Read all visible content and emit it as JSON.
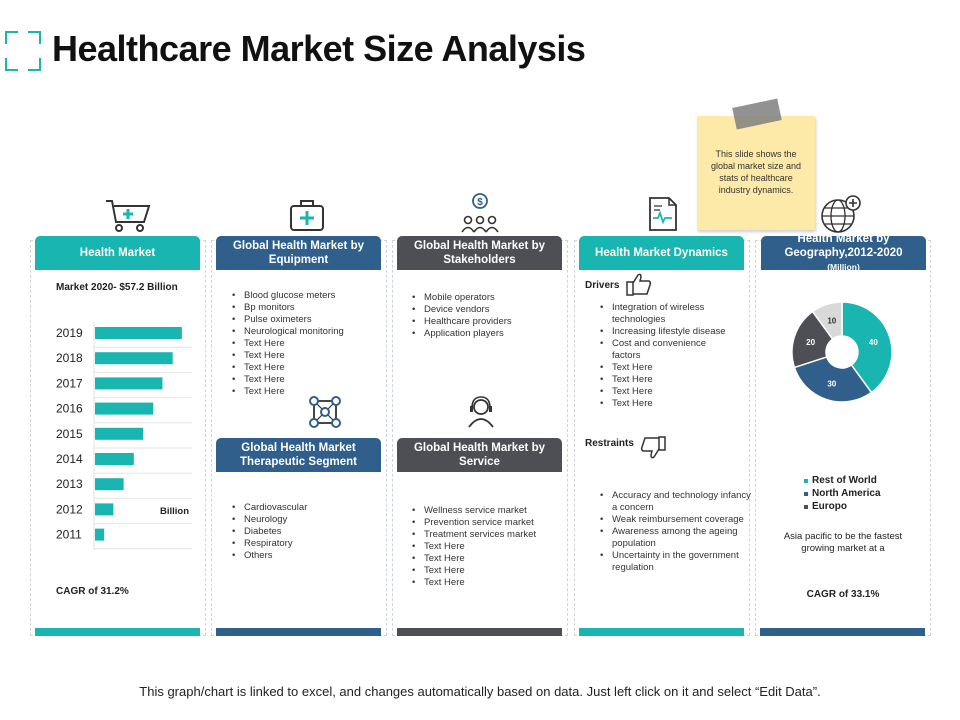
{
  "title": "Healthcare Market Size Analysis",
  "note": "This slide shows the global market size and stats of healthcare industry dynamics.",
  "footer": "This graph/chart is linked to excel, and changes automatically based on data. Just left click on it and select “Edit Data”.",
  "colors": {
    "teal": "#19b5b0",
    "blue": "#2f5f8a",
    "gray": "#4d4f54",
    "note": "#fde9a8"
  },
  "col1": {
    "header": "Health Market",
    "subtitle": "Market 2020- $57.2 Billion",
    "unit": "Billion",
    "cagr": "CAGR of 31.2%",
    "icon": "shopping-cart-icon"
  },
  "col2": {
    "header1": "Global Health Market by Equipment",
    "items1": [
      "Blood glucose meters",
      "Bp monitors",
      "Pulse oximeters",
      "Neurological monitoring",
      "Text Here",
      "Text Here",
      "Text Here",
      "Text Here",
      "Text Here"
    ],
    "header2": "Global Health Market Therapeutic Segment",
    "items2": [
      "Cardiovascular",
      "Neurology",
      "Diabetes",
      "Respiratory",
      "Others"
    ],
    "icon1": "medical-kit-icon",
    "icon2": "molecule-icon"
  },
  "col3": {
    "header1": "Global Health Market by Stakeholders",
    "items1": [
      "Mobile operators",
      "Device vendors",
      "Healthcare providers",
      "Application players"
    ],
    "header2": "Global Health Market by Service",
    "items2": [
      "Wellness service market",
      "Prevention service market",
      "Treatment services market",
      "Text Here",
      "Text Here",
      "Text Here",
      "Text Here"
    ],
    "icon1": "stakeholders-dollar-icon",
    "icon2": "support-agent-icon"
  },
  "col4": {
    "header": "Health Market Dynamics",
    "drivers_label": "Drivers",
    "drivers": [
      "Integration of wireless technologies",
      "Increasing lifestyle disease",
      "Cost and convenience factors",
      "Text Here",
      "Text Here",
      "Text Here",
      "Text Here"
    ],
    "restraints_label": "Restraints",
    "restraints": [
      "Accuracy and technology infancy a concern",
      "Weak reimbursement coverage",
      "Awareness among the ageing population",
      "Uncertainty in the government regulation"
    ],
    "icon": "medical-report-icon"
  },
  "col5": {
    "header": "Health Market by Geography,2012-2020",
    "header_unit": "(Million)",
    "note": "Asia pacific to be the fastest growing market at a",
    "cagr": "CAGR of 33.1%",
    "icon": "globe-plus-icon"
  },
  "chart_data": [
    {
      "type": "bar",
      "orientation": "horizontal",
      "title": "Market 2020- $57.2 Billion",
      "categories": [
        "2019",
        "2018",
        "2017",
        "2016",
        "2015",
        "2014",
        "2013",
        "2012",
        "2011"
      ],
      "values": [
        85,
        76,
        66,
        57,
        47,
        38,
        28,
        18,
        9
      ],
      "unit_label": "Billion",
      "color": "#19b5b0"
    },
    {
      "type": "pie",
      "variant": "donut",
      "title": "Health Market by Geography,2012-2020(Million)",
      "slices": [
        {
          "name": "Rest of World",
          "value": 40,
          "color": "#19b5b0"
        },
        {
          "name": "North America",
          "value": 30,
          "color": "#2f5f8a"
        },
        {
          "name": "Europo",
          "value": 20,
          "color": "#4d4f54"
        },
        {
          "name": "",
          "value": 10,
          "color": "#d9d9d9"
        }
      ]
    }
  ]
}
